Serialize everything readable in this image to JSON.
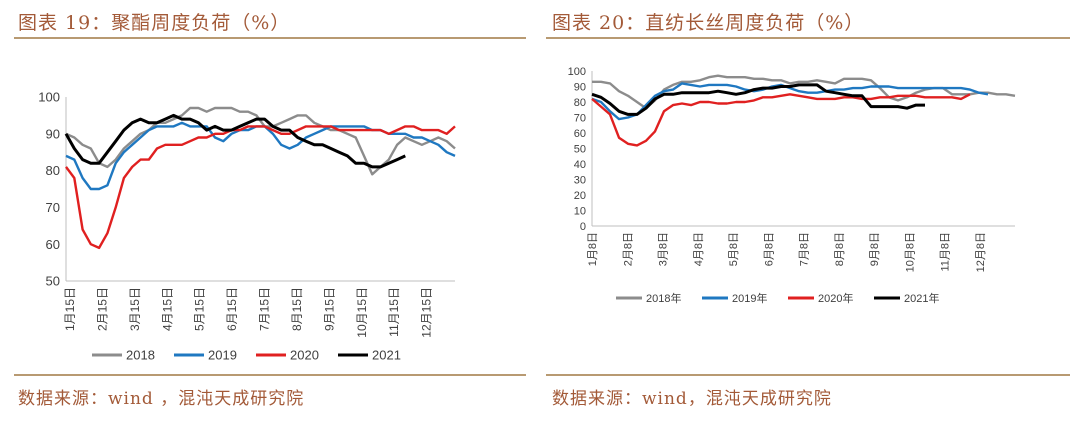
{
  "left": {
    "title": "图表 19：聚酯周度负荷（%）",
    "source": "数据来源：wind ，混沌天成研究院"
  },
  "right": {
    "title": "图表 20：直纺长丝周度负荷（%）",
    "source": "数据来源：wind，混沌天成研究院"
  },
  "chart_data": [
    {
      "type": "line",
      "title": "聚酯周度负荷（%）",
      "x_ticks": [
        "1月15日",
        "2月15日",
        "3月15日",
        "4月15日",
        "5月15日",
        "6月15日",
        "7月15日",
        "8月15日",
        "9月15日",
        "10月15日",
        "11月15日",
        "12月15日"
      ],
      "ylim": [
        50,
        100
      ],
      "y_ticks": [
        50,
        60,
        70,
        80,
        90,
        100
      ],
      "grid": false,
      "legend": "bottom",
      "series": [
        {
          "name": "2018",
          "color": "#8c8c8c",
          "values": [
            90,
            89,
            87,
            86,
            82,
            81,
            83,
            86,
            88,
            90,
            91,
            93,
            93,
            94,
            95,
            97,
            97,
            96,
            97,
            97,
            97,
            96,
            96,
            95,
            92,
            92,
            93,
            94,
            95,
            95,
            93,
            92,
            91,
            91,
            90,
            89,
            84,
            79,
            81,
            83,
            87,
            89,
            88,
            87,
            88,
            89,
            88,
            86
          ]
        },
        {
          "name": "2019",
          "color": "#1f78c1",
          "values": [
            84,
            83,
            78,
            75,
            75,
            76,
            82,
            85,
            87,
            89,
            91,
            92,
            92,
            92,
            93,
            92,
            92,
            92,
            89,
            88,
            90,
            91,
            91,
            92,
            92,
            90,
            87,
            86,
            87,
            89,
            90,
            91,
            92,
            92,
            92,
            92,
            92,
            91,
            91,
            90,
            90,
            90,
            89,
            89,
            88,
            87,
            85,
            84
          ]
        },
        {
          "name": "2020",
          "color": "#e02020",
          "values": [
            81,
            78,
            64,
            60,
            59,
            63,
            70,
            78,
            81,
            83,
            83,
            86,
            87,
            87,
            87,
            88,
            89,
            89,
            90,
            90,
            91,
            91,
            92,
            92,
            92,
            91,
            90,
            90,
            91,
            92,
            92,
            92,
            92,
            91,
            91,
            91,
            91,
            91,
            91,
            90,
            91,
            92,
            92,
            91,
            91,
            91,
            90,
            92
          ]
        },
        {
          "name": "2021",
          "color": "#000000",
          "values": [
            90,
            86,
            83,
            82,
            82,
            85,
            88,
            91,
            93,
            94,
            93,
            93,
            94,
            95,
            94,
            94,
            93,
            91,
            92,
            91,
            91,
            92,
            93,
            94,
            94,
            92,
            91,
            91,
            89,
            88,
            87,
            87,
            86,
            85,
            84,
            82,
            82,
            81,
            81,
            82,
            83,
            84
          ]
        }
      ]
    },
    {
      "type": "line",
      "title": "直纺长丝周度负荷（%）",
      "x_ticks": [
        "1月8日",
        "2月8日",
        "3月8日",
        "4月8日",
        "5月8日",
        "6月8日",
        "7月8日",
        "8月8日",
        "9月8日",
        "10月8日",
        "11月8日",
        "12月8日"
      ],
      "ylim": [
        0,
        100
      ],
      "y_ticks": [
        0,
        10,
        20,
        30,
        40,
        50,
        60,
        70,
        80,
        90,
        100
      ],
      "grid": false,
      "legend": "bottom",
      "series": [
        {
          "name": "2018年",
          "color": "#8c8c8c",
          "values": [
            93,
            93,
            92,
            87,
            84,
            80,
            76,
            81,
            88,
            91,
            93,
            93,
            94,
            96,
            97,
            96,
            96,
            96,
            95,
            95,
            94,
            94,
            92,
            93,
            93,
            94,
            93,
            92,
            95,
            95,
            95,
            94,
            89,
            83,
            81,
            83,
            86,
            88,
            89,
            89,
            85,
            85,
            85,
            86,
            86,
            85,
            85,
            84
          ]
        },
        {
          "name": "2019年",
          "color": "#1f78c1",
          "values": [
            82,
            80,
            74,
            69,
            70,
            72,
            78,
            84,
            87,
            88,
            92,
            91,
            90,
            91,
            91,
            91,
            90,
            88,
            87,
            88,
            90,
            91,
            89,
            87,
            86,
            86,
            87,
            88,
            88,
            89,
            89,
            90,
            90,
            90,
            89,
            89,
            89,
            89,
            89,
            89,
            89,
            89,
            88,
            86,
            85
          ]
        },
        {
          "name": "2020年",
          "color": "#e02020",
          "values": [
            82,
            77,
            72,
            57,
            53,
            52,
            55,
            61,
            74,
            78,
            79,
            78,
            80,
            80,
            79,
            79,
            80,
            80,
            81,
            83,
            83,
            84,
            85,
            84,
            83,
            82,
            82,
            82,
            83,
            83,
            82,
            82,
            83,
            83,
            84,
            84,
            84,
            83,
            83,
            83,
            83,
            82,
            85
          ]
        },
        {
          "name": "2021年",
          "color": "#000000",
          "values": [
            85,
            83,
            79,
            74,
            72,
            72,
            76,
            82,
            85,
            85,
            86,
            86,
            86,
            86,
            87,
            86,
            85,
            86,
            88,
            89,
            89,
            90,
            90,
            91,
            91,
            91,
            87,
            86,
            85,
            84,
            84,
            77,
            77,
            77,
            77,
            76,
            78,
            78
          ]
        }
      ]
    }
  ]
}
